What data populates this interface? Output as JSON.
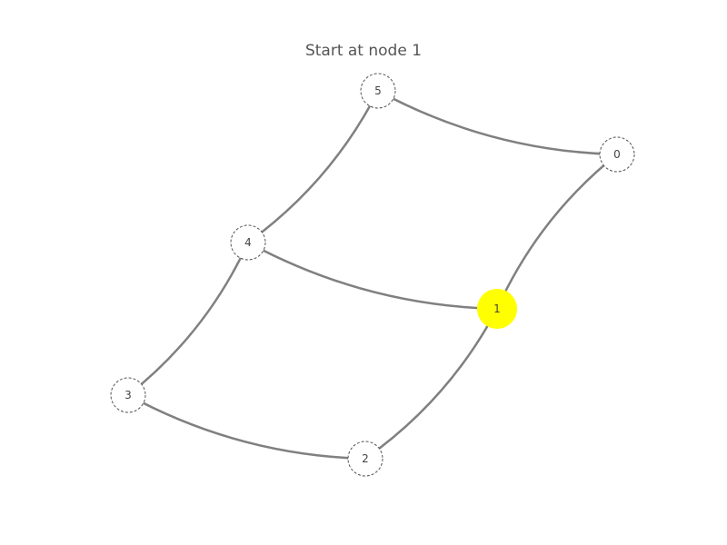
{
  "title": "Start at node 1",
  "graph": {
    "start_node": "1",
    "nodes": [
      {
        "id": "0",
        "label": "0",
        "highlighted": false
      },
      {
        "id": "1",
        "label": "1",
        "highlighted": true
      },
      {
        "id": "2",
        "label": "2",
        "highlighted": false
      },
      {
        "id": "3",
        "label": "3",
        "highlighted": false
      },
      {
        "id": "4",
        "label": "4",
        "highlighted": false
      },
      {
        "id": "5",
        "label": "5",
        "highlighted": false
      }
    ],
    "edges": [
      {
        "source": "5",
        "target": "0"
      },
      {
        "source": "0",
        "target": "1"
      },
      {
        "source": "4",
        "target": "5"
      },
      {
        "source": "4",
        "target": "1"
      },
      {
        "source": "3",
        "target": "4"
      },
      {
        "source": "3",
        "target": "2"
      },
      {
        "source": "2",
        "target": "1"
      }
    ]
  },
  "colors": {
    "edge": "#808080",
    "node_border": "#555555",
    "node_fill": "#ffffff",
    "highlight_fill": "#ffff00",
    "label": "#444444"
  }
}
